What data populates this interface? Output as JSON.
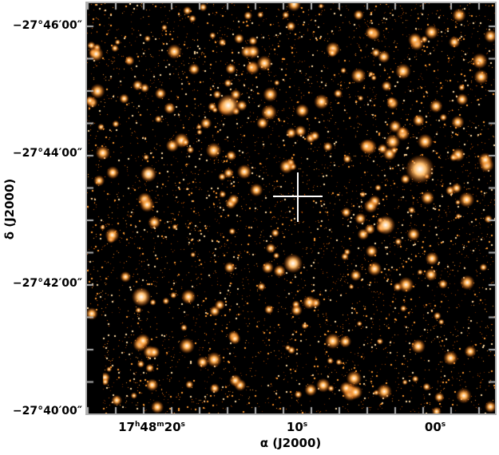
{
  "axes": {
    "x_title": "α (J2000)",
    "y_title": "δ (J2000)",
    "x_ticks": [
      {
        "h": "17",
        "hu": "h",
        "m": "48",
        "mu": "m",
        "s": "20",
        "su": "s"
      },
      {
        "s": "10",
        "su": "s"
      },
      {
        "s": "00",
        "su": "s"
      }
    ],
    "y_ticks": [
      "−27°46′00″",
      "−27°44′00″",
      "−27°42′00″",
      "−27°40′00″"
    ],
    "frame_color": "#b0b0b0"
  },
  "image": {
    "colormap": "black-orange-white",
    "marker": "white-cross",
    "accent": "#ff8c1a"
  }
}
